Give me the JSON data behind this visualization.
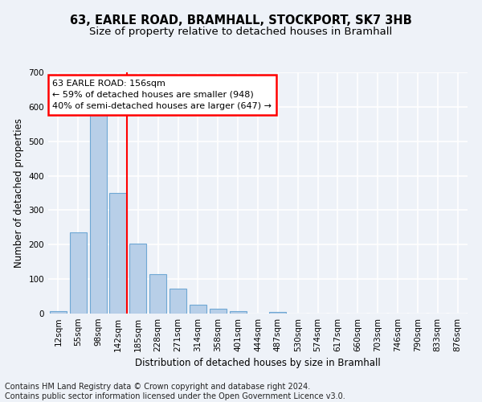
{
  "title": "63, EARLE ROAD, BRAMHALL, STOCKPORT, SK7 3HB",
  "subtitle": "Size of property relative to detached houses in Bramhall",
  "xlabel": "Distribution of detached houses by size in Bramhall",
  "ylabel": "Number of detached properties",
  "bin_labels": [
    "12sqm",
    "55sqm",
    "98sqm",
    "142sqm",
    "185sqm",
    "228sqm",
    "271sqm",
    "314sqm",
    "358sqm",
    "401sqm",
    "444sqm",
    "487sqm",
    "530sqm",
    "574sqm",
    "617sqm",
    "660sqm",
    "703sqm",
    "746sqm",
    "790sqm",
    "833sqm",
    "876sqm"
  ],
  "bar_values": [
    7,
    235,
    580,
    350,
    202,
    115,
    72,
    25,
    15,
    7,
    0,
    5,
    0,
    0,
    0,
    0,
    0,
    0,
    0,
    0,
    0
  ],
  "bar_color": "#b8cfe8",
  "bar_edge_color": "#6fa8d4",
  "vline_color": "red",
  "vline_bin_index": 3,
  "annotation_text": "63 EARLE ROAD: 156sqm\n← 59% of detached houses are smaller (948)\n40% of semi-detached houses are larger (647) →",
  "annotation_box_color": "white",
  "annotation_box_edge_color": "red",
  "ylim": [
    0,
    700
  ],
  "yticks": [
    0,
    100,
    200,
    300,
    400,
    500,
    600,
    700
  ],
  "footnote": "Contains HM Land Registry data © Crown copyright and database right 2024.\nContains public sector information licensed under the Open Government Licence v3.0.",
  "bg_color": "#eef2f8",
  "plot_bg_color": "#eef2f8",
  "grid_color": "#ffffff",
  "title_fontsize": 10.5,
  "subtitle_fontsize": 9.5,
  "axis_label_fontsize": 8.5,
  "tick_fontsize": 7.5,
  "annotation_fontsize": 8,
  "footnote_fontsize": 7
}
